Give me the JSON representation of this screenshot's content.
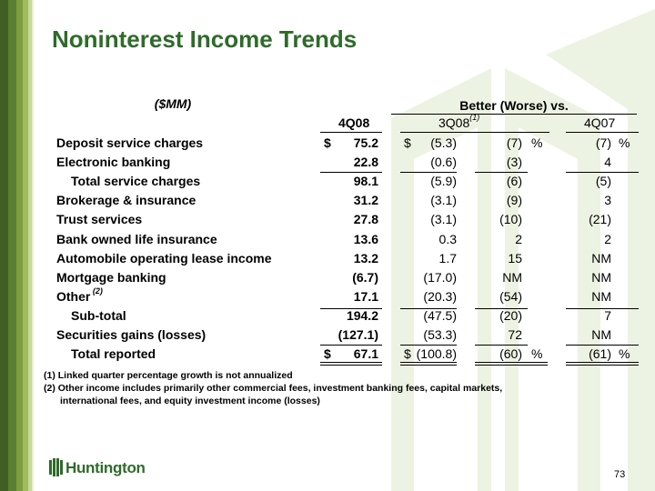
{
  "title": "Noninterest Income Trends",
  "units_label": "($MM)",
  "group_header": "Better (Worse) vs.",
  "columns": {
    "current": "4Q08",
    "prior_q": "3Q08",
    "prior_q_note": "(1)",
    "prior_y": "4Q07"
  },
  "rows": [
    {
      "label": "Deposit service charges",
      "indent": false,
      "sign": "$",
      "value": "75.2",
      "dsign": "$",
      "d_amt": "(5.3)",
      "d_pct": "(7)",
      "pct_sym": "%",
      "y_pct": "(7)",
      "y_sym": "%"
    },
    {
      "label": "Electronic banking",
      "indent": false,
      "sign": "",
      "value": "22.8",
      "dsign": "",
      "d_amt": "(0.6)",
      "d_pct": "(3)",
      "pct_sym": "",
      "y_pct": "4",
      "y_sym": ""
    },
    {
      "label": "Total service charges",
      "indent": true,
      "sign": "",
      "value": "98.1",
      "dsign": "",
      "d_amt": "(5.9)",
      "d_pct": "(6)",
      "pct_sym": "",
      "y_pct": "(5)",
      "y_sym": ""
    },
    {
      "label": "Brokerage & insurance",
      "indent": false,
      "sign": "",
      "value": "31.2",
      "dsign": "",
      "d_amt": "(3.1)",
      "d_pct": "(9)",
      "pct_sym": "",
      "y_pct": "3",
      "y_sym": ""
    },
    {
      "label": "Trust services",
      "indent": false,
      "sign": "",
      "value": "27.8",
      "dsign": "",
      "d_amt": "(3.1)",
      "d_pct": "(10)",
      "pct_sym": "",
      "y_pct": "(21)",
      "y_sym": ""
    },
    {
      "label": "Bank owned life insurance",
      "indent": false,
      "sign": "",
      "value": "13.6",
      "dsign": "",
      "d_amt": "0.3",
      "d_pct": "2",
      "pct_sym": "",
      "y_pct": "2",
      "y_sym": ""
    },
    {
      "label": "Automobile operating lease income",
      "indent": false,
      "sign": "",
      "value": "13.2",
      "dsign": "",
      "d_amt": "1.7",
      "d_pct": "15",
      "pct_sym": "",
      "y_pct": "NM",
      "y_sym": ""
    },
    {
      "label": "Mortgage banking",
      "indent": false,
      "sign": "",
      "value": "(6.7)",
      "dsign": "",
      "d_amt": "(17.0)",
      "d_pct": "NM",
      "pct_sym": "",
      "y_pct": "NM",
      "y_sym": ""
    },
    {
      "label": "Other",
      "label_note": "(2)",
      "indent": false,
      "sign": "",
      "value": "17.1",
      "dsign": "",
      "d_amt": "(20.3)",
      "d_pct": "(54)",
      "pct_sym": "",
      "y_pct": "NM",
      "y_sym": ""
    },
    {
      "label": "Sub-total",
      "indent": true,
      "sign": "",
      "value": "194.2",
      "dsign": "",
      "d_amt": "(47.5)",
      "d_pct": "(20)",
      "pct_sym": "",
      "y_pct": "7",
      "y_sym": ""
    },
    {
      "label": "Securities gains (losses)",
      "indent": false,
      "sign": "",
      "value": "(127.1)",
      "dsign": "",
      "d_amt": "(53.3)",
      "d_pct": "72",
      "pct_sym": "",
      "y_pct": "NM",
      "y_sym": ""
    },
    {
      "label": "Total reported",
      "indent": true,
      "sign": "$",
      "value": "67.1",
      "dsign": "$",
      "d_amt": "(100.8)",
      "d_pct": "(60)",
      "pct_sym": "%",
      "y_pct": "(61)",
      "y_sym": "%"
    }
  ],
  "footnotes": [
    "(1)  Linked quarter percentage growth is not annualized",
    "(2)  Other income includes primarily other commercial fees, investment banking fees, capital markets,",
    "international fees, and equity investment income (losses)"
  ],
  "logo_text": "Huntington",
  "page_number": "73",
  "colors": {
    "title": "#2f6b2a",
    "stripe_dark": "#3f5f24",
    "stripe_light": "#9fbb5f",
    "motif": "#e9f0db"
  }
}
